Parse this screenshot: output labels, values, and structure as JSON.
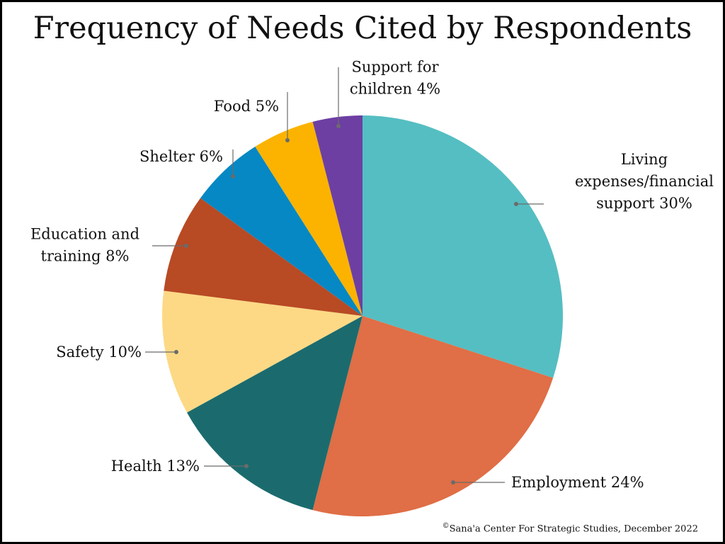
{
  "chart_data": {
    "type": "pie",
    "title": "Frequency of Needs Cited by Respondents",
    "slices": [
      {
        "label_lines": [
          "Living",
          "expenses/financial",
          "support 30%"
        ],
        "value": 30,
        "color": "#55bec2"
      },
      {
        "label_lines": [
          "Employment 24%"
        ],
        "value": 24,
        "color": "#e06e46"
      },
      {
        "label_lines": [
          "Health 13%"
        ],
        "value": 13,
        "color": "#1b6b6e"
      },
      {
        "label_lines": [
          "Safety 10%"
        ],
        "value": 10,
        "color": "#fdd985"
      },
      {
        "label_lines": [
          "Education and",
          "training 8%"
        ],
        "value": 8,
        "color": "#b84a24"
      },
      {
        "label_lines": [
          "Shelter 6%"
        ],
        "value": 6,
        "color": "#0688c4"
      },
      {
        "label_lines": [
          "Food 5%"
        ],
        "value": 5,
        "color": "#fbb300"
      },
      {
        "label_lines": [
          "Support for",
          "children 4%"
        ],
        "value": 4,
        "color": "#6d3fa2"
      }
    ]
  },
  "source": {
    "symbol": "©",
    "text": "Sana'a Center For Strategic Studies, December 2022"
  }
}
